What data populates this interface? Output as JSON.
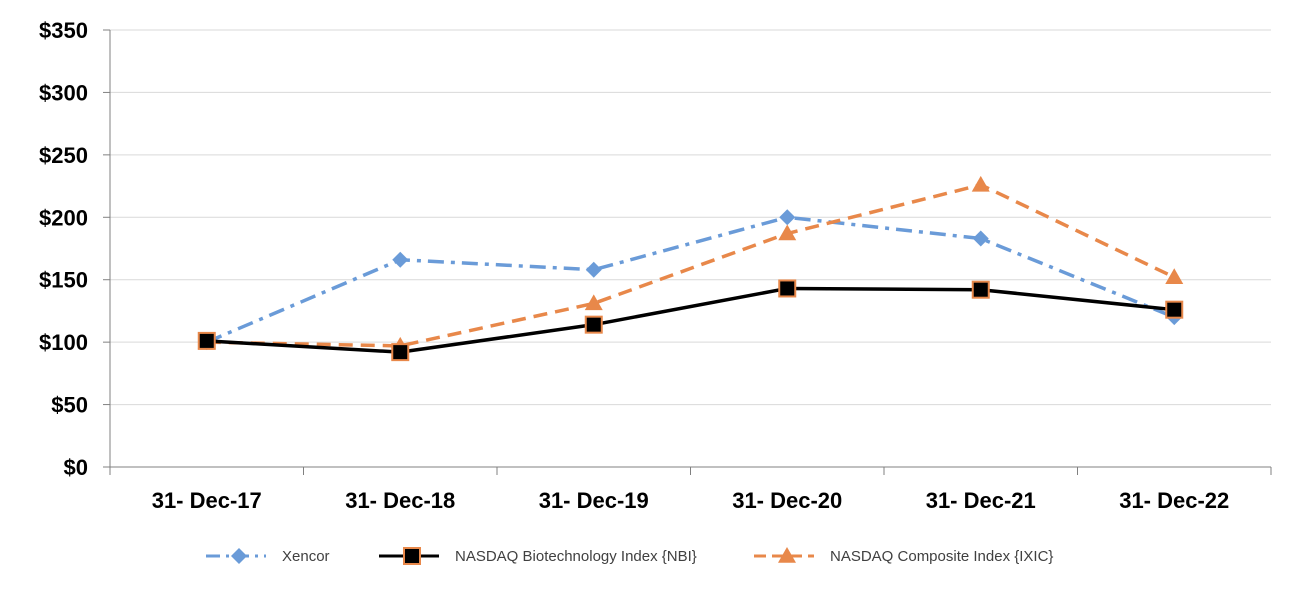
{
  "chart_data": {
    "type": "line",
    "title": "",
    "xlabel": "",
    "ylabel": "",
    "categories": [
      "31- Dec-17",
      "31- Dec-18",
      "31- Dec-19",
      "31- Dec-20",
      "31- Dec-21",
      "31- Dec-22"
    ],
    "ylim": [
      0,
      350
    ],
    "yticks": [
      0,
      50,
      100,
      150,
      200,
      250,
      300,
      350
    ],
    "ytick_labels": [
      "$0",
      "$50",
      "$100",
      "$150",
      "$200",
      "$250",
      "$300",
      "$350"
    ],
    "grid": true,
    "legend_position": "bottom",
    "series": [
      {
        "name": "Xencor",
        "values": [
          100,
          166,
          158,
          200,
          183,
          120
        ],
        "color": "#6a9bd8",
        "line_style": "dash-dot",
        "marker": "diamond"
      },
      {
        "name": "NASDAQ Biotechnology Index {NBI}",
        "values": [
          101,
          92,
          114,
          143,
          142,
          126
        ],
        "color": "#000000",
        "line_style": "solid",
        "marker": "square",
        "marker_edge_color": "#e8884a"
      },
      {
        "name": "NASDAQ Composite Index {IXIC}",
        "values": [
          100,
          97,
          131,
          187,
          226,
          152
        ],
        "color": "#e8884a",
        "line_style": "dashed",
        "marker": "triangle"
      }
    ]
  }
}
